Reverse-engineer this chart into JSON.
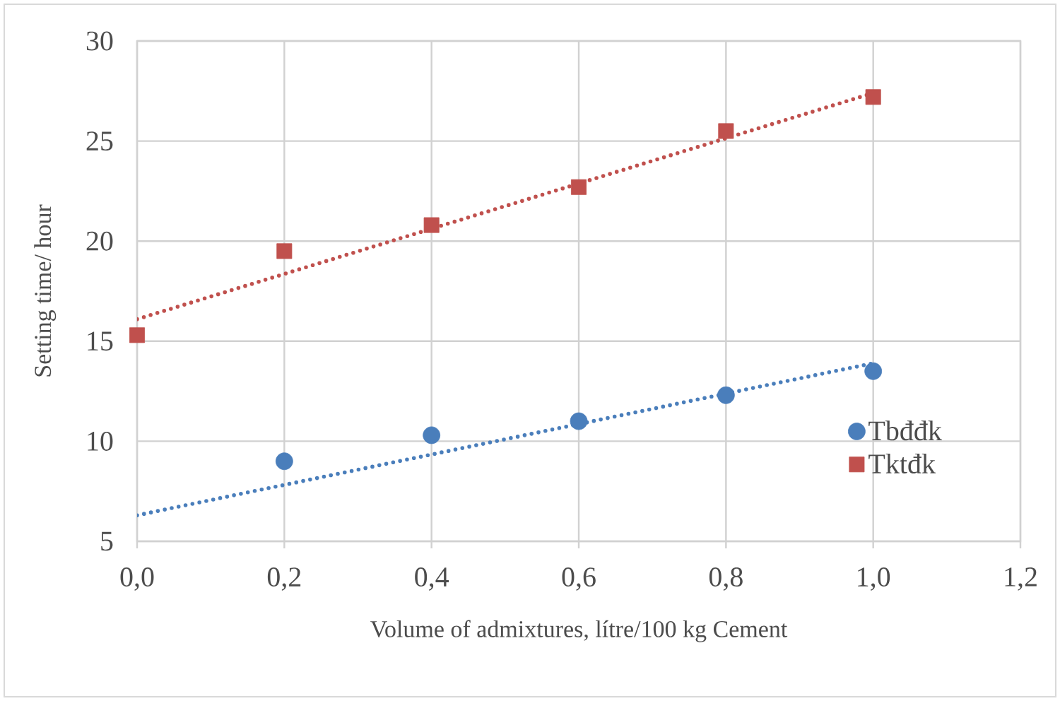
{
  "chart_data": {
    "type": "scatter",
    "xlabel": "Volume of admixtures, lítre/100 kg Cement",
    "ylabel": "Setting time/ hour",
    "xlim": [
      0,
      1.2
    ],
    "ylim": [
      5,
      30
    ],
    "xticks": [
      {
        "value": 0,
        "label": "0,0"
      },
      {
        "value": 0.2,
        "label": "0,2"
      },
      {
        "value": 0.4,
        "label": "0,4"
      },
      {
        "value": 0.6,
        "label": "0,6"
      },
      {
        "value": 0.8,
        "label": "0,8"
      },
      {
        "value": 1.0,
        "label": "1,0"
      },
      {
        "value": 1.2,
        "label": "1,2"
      }
    ],
    "yticks": [
      5,
      10,
      15,
      20,
      25,
      30
    ],
    "grid": true,
    "legend": "right",
    "series": [
      {
        "name": "Tbđđk",
        "marker": "circle",
        "color": "#4a7ebb",
        "x": [
          0.2,
          0.4,
          0.6,
          0.8,
          1.0
        ],
        "values": [
          9.0,
          10.3,
          11.0,
          12.3,
          13.5
        ]
      },
      {
        "name": "Tktđk",
        "marker": "square",
        "color": "#c0504d",
        "x": [
          0,
          0.2,
          0.4,
          0.6,
          0.8,
          1.0
        ],
        "values": [
          15.3,
          19.5,
          20.8,
          22.7,
          25.5,
          27.2
        ]
      },
      {
        "type": "line",
        "line_style": "dotted",
        "marker": "none",
        "color": "#4a7ebb",
        "x": [
          0,
          1.0
        ],
        "values": [
          6.3,
          13.9
        ]
      },
      {
        "type": "line",
        "line_style": "dotted",
        "marker": "none",
        "color": "#c0504d",
        "x": [
          0,
          1.0
        ],
        "values": [
          16.1,
          27.4
        ]
      }
    ]
  }
}
